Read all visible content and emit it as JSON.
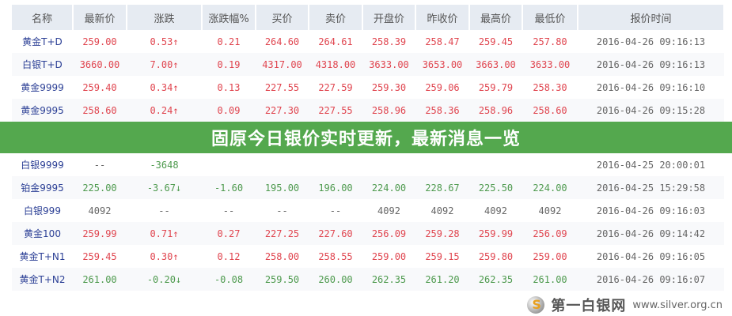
{
  "table": {
    "headers": [
      "名称",
      "最新价",
      "涨跌",
      "涨跌幅%",
      "买价",
      "卖价",
      "开盘价",
      "昨收价",
      "最高价",
      "最低价",
      "报价时间"
    ],
    "rows": [
      {
        "trend": "up",
        "cells": [
          "黄金T+D",
          "259.00",
          "0.53↑",
          "0.21",
          "264.60",
          "264.61",
          "258.39",
          "258.47",
          "259.45",
          "257.80",
          "2016-04-26 09:16:13"
        ]
      },
      {
        "trend": "up",
        "cells": [
          "白银T+D",
          "3660.00",
          "7.00↑",
          "0.19",
          "4317.00",
          "4318.00",
          "3633.00",
          "3653.00",
          "3663.00",
          "3633.00",
          "2016-04-26 09:16:13"
        ]
      },
      {
        "trend": "up",
        "cells": [
          "黄金9999",
          "259.40",
          "0.34↑",
          "0.13",
          "227.55",
          "227.59",
          "259.30",
          "259.06",
          "259.79",
          "258.30",
          "2016-04-26 09:16:10"
        ]
      },
      {
        "trend": "up",
        "cells": [
          "黄金9995",
          "258.60",
          "0.24↑",
          "0.09",
          "227.30",
          "227.55",
          "258.96",
          "258.36",
          "258.96",
          "258.60",
          "2016-04-26 09:15:28"
        ]
      },
      {
        "trend": "down",
        "cells": [
          "白银9999",
          "--",
          "-3648",
          "",
          "",
          "",
          "",
          "",
          "",
          "",
          "2016-04-25 20:00:01"
        ]
      },
      {
        "trend": "down",
        "cells": [
          "铂金9995",
          "225.00",
          "-3.67↓",
          "-1.60",
          "195.00",
          "196.00",
          "224.00",
          "228.67",
          "225.50",
          "224.00",
          "2016-04-25 15:29:58"
        ]
      },
      {
        "trend": "flat",
        "cells": [
          "白银999",
          "4092",
          "--",
          "--",
          "--",
          "--",
          "4092",
          "4092",
          "4092",
          "4092",
          "2016-04-26 09:16:03"
        ]
      },
      {
        "trend": "up",
        "cells": [
          "黄金100",
          "259.99",
          "0.71↑",
          "0.27",
          "227.25",
          "227.60",
          "256.09",
          "259.28",
          "259.99",
          "256.09",
          "2016-04-26 09:14:42"
        ]
      },
      {
        "trend": "up",
        "cells": [
          "黄金T+N1",
          "259.45",
          "0.30↑",
          "0.12",
          "258.00",
          "258.55",
          "259.00",
          "259.15",
          "259.80",
          "259.00",
          "2016-04-26 09:16:05"
        ]
      },
      {
        "trend": "down",
        "cells": [
          "黄金T+N2",
          "261.00",
          "-0.20↓",
          "-0.08",
          "259.50",
          "260.00",
          "262.35",
          "261.20",
          "262.35",
          "261.00",
          "2016-04-26 09:16:07"
        ]
      }
    ]
  },
  "banner": {
    "title": "固原今日银价实时更新，最新消息一览"
  },
  "watermark": {
    "name": "第一白银网",
    "url": "www.silver.org.cn"
  },
  "colors": {
    "up": "#e0454f",
    "down": "#4e9a4e",
    "name": "#2b3f95",
    "banner": "#54a84e",
    "header_bg": "#e6ebf2"
  }
}
